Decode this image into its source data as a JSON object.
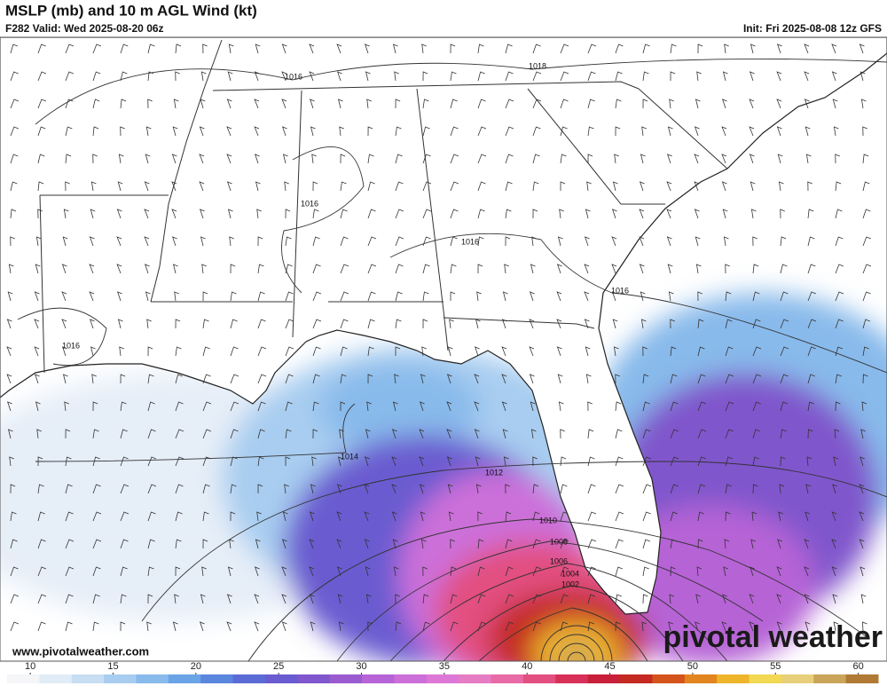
{
  "header": {
    "title": "MSLP (mb) and 10 m AGL Wind (kt)",
    "valid": "F282 Valid: Wed 2025-08-20 06z",
    "init": "Init: Fri 2025-08-08 12z GFS"
  },
  "map": {
    "isobar_labels": [
      "1016",
      "1018",
      "1016",
      "1016",
      "1016",
      "1016",
      "1014",
      "1012",
      "1010",
      "1008",
      "1006",
      "1004",
      "1002"
    ]
  },
  "colorbar": {
    "range": [
      8.6,
      61.2
    ],
    "ticks": [
      10,
      15,
      20,
      25,
      30,
      35,
      40,
      45,
      50,
      55,
      60
    ],
    "colors": [
      "#f4f6f8",
      "#e2ecf6",
      "#c7def3",
      "#a8cdf0",
      "#88baeb",
      "#6aa4e6",
      "#5a86dd",
      "#5b6bd6",
      "#6a5bd0",
      "#8057cc",
      "#9a5bd0",
      "#b664d6",
      "#cc6fd9",
      "#dd78d6",
      "#e67cc4",
      "#e86aa6",
      "#e24f80",
      "#d83058",
      "#c81f3a",
      "#c42a22",
      "#d5541c",
      "#e2851f",
      "#eeb52b",
      "#f2d853",
      "#e8d07a",
      "#c9a45a",
      "#b07a34"
    ]
  },
  "footer": {
    "url": "www.pivotalweather.com",
    "logo": "pivotal weather"
  }
}
